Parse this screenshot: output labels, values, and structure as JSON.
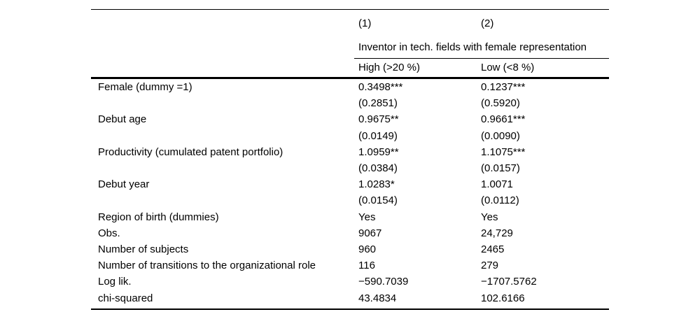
{
  "page": {
    "background": "#ffffff",
    "text_color": "#000000",
    "rule_color": "#000000"
  },
  "table": {
    "header": {
      "model_1": "(1)",
      "model_2": "(2)",
      "span_label": "Inventor in tech. fields with female representation",
      "col1_label": "High (>20 %)",
      "col2_label": "Low (<8 %)"
    },
    "rows": [
      {
        "label": "Female (dummy =1)",
        "c1": "0.3498***",
        "c2": "0.1237***"
      },
      {
        "label": "",
        "c1": "(0.2851)",
        "c2": "(0.5920)"
      },
      {
        "label": "Debut age",
        "c1": "0.9675**",
        "c2": "0.9661***"
      },
      {
        "label": "",
        "c1": "(0.0149)",
        "c2": "(0.0090)"
      },
      {
        "label": "Productivity (cumulated patent portfolio)",
        "c1": "1.0959**",
        "c2": "1.1075***"
      },
      {
        "label": "",
        "c1": "(0.0384)",
        "c2": "(0.0157)"
      },
      {
        "label": "Debut year",
        "c1": "1.0283*",
        "c2": "1.0071"
      },
      {
        "label": "",
        "c1": "(0.0154)",
        "c2": "(0.0112)"
      },
      {
        "label": "Region of birth (dummies)",
        "c1": "Yes",
        "c2": "Yes"
      },
      {
        "label": "Obs.",
        "c1": "9067",
        "c2": "24,729"
      },
      {
        "label": "Number of subjects",
        "c1": "960",
        "c2": "2465"
      },
      {
        "label": "Number of transitions to the organizational role",
        "c1": "116",
        "c2": "279"
      },
      {
        "label": "Log lik.",
        "c1": "−590.7039",
        "c2": "−1707.5762"
      },
      {
        "label": "chi-squared",
        "c1": "43.4834",
        "c2": "102.6166"
      }
    ]
  }
}
